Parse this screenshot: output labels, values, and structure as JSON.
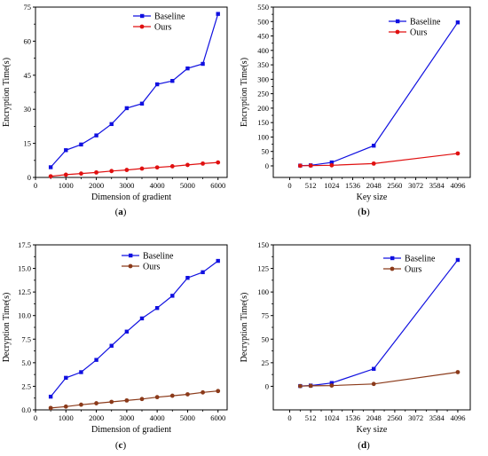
{
  "chart_data": [
    {
      "type": "line",
      "panel_label": "a",
      "xlabel": "Dimension of gradient",
      "ylabel": "Encryption Time(s)",
      "xlim": [
        0,
        6300
      ],
      "ylim": [
        0,
        75
      ],
      "xticks": [
        0,
        1000,
        2000,
        3000,
        4000,
        5000,
        6000
      ],
      "yticks": [
        0,
        15,
        30,
        45,
        60,
        75
      ],
      "xtick_labels": [
        "0",
        "1000",
        "2000",
        "3000",
        "4000",
        "5000",
        "6000"
      ],
      "ytick_labels": [
        "0",
        "15",
        "30",
        "45",
        "60",
        "75"
      ],
      "legend": "top-left",
      "series": [
        {
          "name": "Baseline",
          "color": "#1010e0",
          "marker": "square",
          "x": [
            500,
            1000,
            1500,
            2000,
            2500,
            3000,
            3500,
            4000,
            4500,
            5000,
            5500,
            6000
          ],
          "y": [
            4.5,
            12,
            14.5,
            18.5,
            23.5,
            30.5,
            32.5,
            41,
            42.5,
            48,
            50,
            72
          ]
        },
        {
          "name": "Ours",
          "color": "#e01010",
          "marker": "circle",
          "x": [
            500,
            1000,
            1500,
            2000,
            2500,
            3000,
            3500,
            4000,
            4500,
            5000,
            5500,
            6000
          ],
          "y": [
            0.5,
            1.2,
            1.7,
            2.2,
            2.8,
            3.3,
            3.9,
            4.4,
            4.9,
            5.5,
            6.1,
            6.6
          ]
        }
      ]
    },
    {
      "type": "line",
      "panel_label": "b",
      "xlabel": "Key size",
      "ylabel": "Encryption Time(s)",
      "xlim": [
        -400,
        4400
      ],
      "ylim": [
        -40,
        550
      ],
      "xticks": [
        0,
        512,
        1024,
        1536,
        2048,
        2560,
        3072,
        3584,
        4096
      ],
      "yticks": [
        0,
        50,
        100,
        150,
        200,
        250,
        300,
        350,
        400,
        450,
        500,
        550
      ],
      "xtick_labels": [
        "0",
        "512",
        "1024",
        "1536",
        "2048",
        "2560",
        "3072",
        "3584",
        "4096"
      ],
      "ytick_labels": [
        "0",
        "50",
        "100",
        "150",
        "200",
        "250",
        "300",
        "350",
        "400",
        "450",
        "500",
        "550"
      ],
      "legend": "top-right",
      "series": [
        {
          "name": "Baseline",
          "color": "#1010e0",
          "marker": "square",
          "x": [
            256,
            512,
            1024,
            2048,
            4096
          ],
          "y": [
            1,
            2,
            12,
            70,
            497
          ]
        },
        {
          "name": "Ours",
          "color": "#e01010",
          "marker": "circle",
          "x": [
            256,
            512,
            1024,
            2048,
            4096
          ],
          "y": [
            0.5,
            1,
            2,
            8,
            43
          ]
        }
      ]
    },
    {
      "type": "line",
      "panel_label": "c",
      "xlabel": "Dimension of gradient",
      "ylabel": "Decryption Time(s)",
      "xlim": [
        0,
        6300
      ],
      "ylim": [
        0,
        17.5
      ],
      "xticks": [
        0,
        1000,
        2000,
        3000,
        4000,
        5000,
        6000
      ],
      "yticks": [
        0,
        2.5,
        5,
        7.5,
        10,
        12.5,
        15,
        17.5
      ],
      "xtick_labels": [
        "0",
        "1000",
        "2000",
        "3000",
        "4000",
        "5000",
        "6000"
      ],
      "ytick_labels": [
        "0.0",
        "2.5",
        "5.0",
        "7.5",
        "10.0",
        "12.5",
        "15.0",
        "17.5"
      ],
      "legend": "top-left",
      "series": [
        {
          "name": "Baseline",
          "color": "#1010e0",
          "marker": "square",
          "x": [
            500,
            1000,
            1500,
            2000,
            2500,
            3000,
            3500,
            4000,
            4500,
            5000,
            5500,
            6000
          ],
          "y": [
            1.4,
            3.4,
            4.0,
            5.3,
            6.8,
            8.3,
            9.7,
            10.8,
            12.1,
            14.0,
            14.6,
            15.8
          ]
        },
        {
          "name": "Ours",
          "color": "#8b3a1a",
          "marker": "circle",
          "x": [
            500,
            1000,
            1500,
            2000,
            2500,
            3000,
            3500,
            4000,
            4500,
            5000,
            5500,
            6000
          ],
          "y": [
            0.2,
            0.35,
            0.55,
            0.7,
            0.85,
            1.0,
            1.15,
            1.35,
            1.5,
            1.65,
            1.85,
            2.0
          ]
        }
      ]
    },
    {
      "type": "line",
      "panel_label": "d",
      "xlabel": "Key size",
      "ylabel": "Decryption Time(s)",
      "xlim": [
        -400,
        4400
      ],
      "ylim": [
        -25,
        150
      ],
      "xticks": [
        0,
        512,
        1024,
        1536,
        2048,
        2560,
        3072,
        3584,
        4096
      ],
      "yticks": [
        0,
        25,
        50,
        75,
        100,
        125,
        150
      ],
      "xtick_labels": [
        "0",
        "512",
        "1024",
        "1536",
        "2048",
        "2560",
        "3072",
        "3584",
        "4096"
      ],
      "ytick_labels": [
        "0",
        "25",
        "50",
        "75",
        "100",
        "125",
        "150"
      ],
      "legend": "top-right",
      "series": [
        {
          "name": "Baseline",
          "color": "#1010e0",
          "marker": "square",
          "x": [
            256,
            512,
            1024,
            2048,
            4096
          ],
          "y": [
            0.3,
            0.8,
            3.5,
            18.5,
            134
          ]
        },
        {
          "name": "Ours",
          "color": "#8b3a1a",
          "marker": "circle",
          "x": [
            256,
            512,
            1024,
            2048,
            4096
          ],
          "y": [
            0.2,
            0.5,
            0.8,
            2.5,
            15
          ]
        }
      ]
    }
  ]
}
